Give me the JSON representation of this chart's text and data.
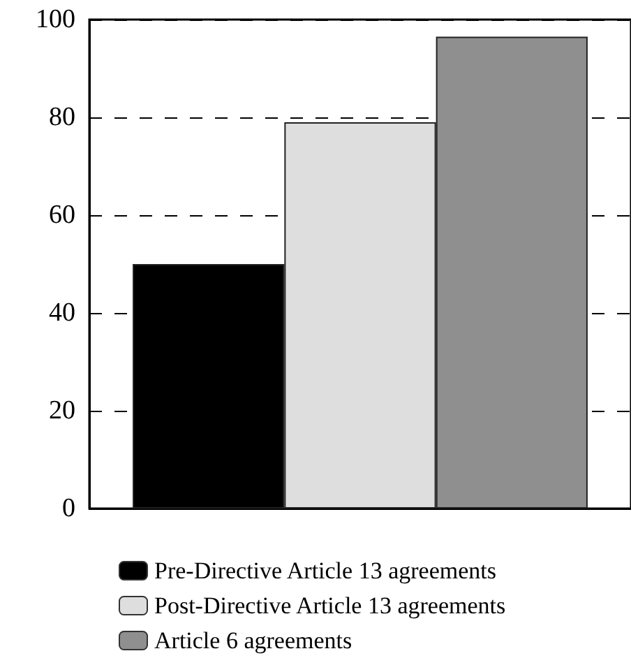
{
  "chart_data": {
    "type": "bar",
    "categories": [
      null
    ],
    "series": [
      {
        "name": "Pre-Directive Article 13 agreements",
        "color": "#000000",
        "values": [
          50
        ]
      },
      {
        "name": "Post-Directive Article 13 agreements",
        "color": "#dedede",
        "values": [
          79
        ]
      },
      {
        "name": "Article 6 agreements",
        "color": "#8f8f8f",
        "values": [
          96.5
        ]
      }
    ],
    "ylim": [
      0,
      100
    ],
    "yticks": [
      0,
      20,
      40,
      60,
      80,
      100
    ],
    "grid": "y",
    "legend": "bottom"
  }
}
